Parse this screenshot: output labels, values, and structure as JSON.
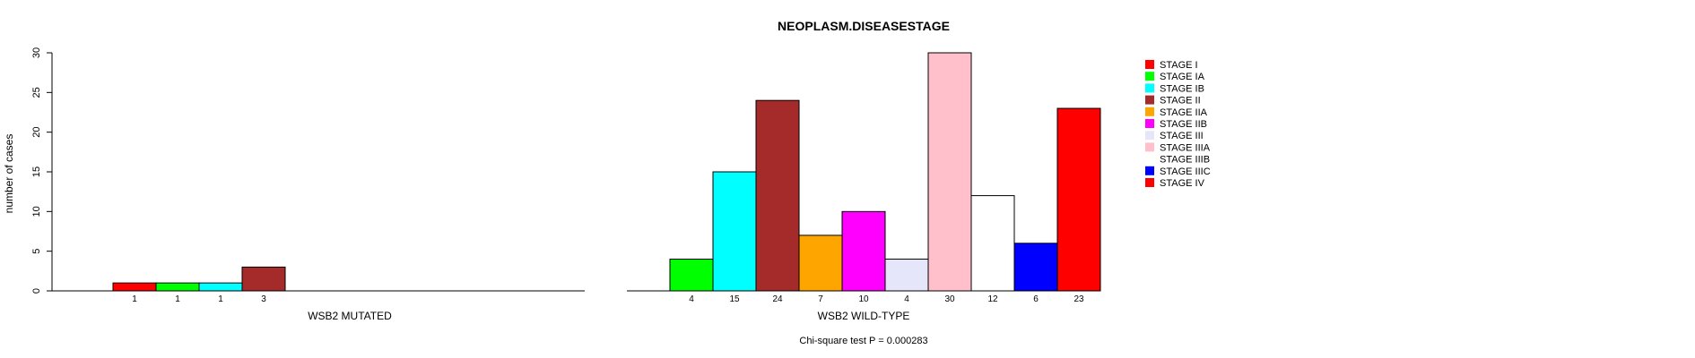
{
  "chart_data": {
    "type": "bar",
    "title": "NEOPLASM.DISEASESTAGE",
    "ylabel": "number of cases",
    "ylim": [
      0,
      30
    ],
    "yticks": [
      0,
      5,
      10,
      15,
      20,
      25,
      30
    ],
    "footer": "Chi-square test P = 0.000283",
    "categories": [
      "STAGE I",
      "STAGE IA",
      "STAGE IB",
      "STAGE II",
      "STAGE IIA",
      "STAGE IIB",
      "STAGE III",
      "STAGE IIIA",
      "STAGE IIIB",
      "STAGE IIIC",
      "STAGE IV"
    ],
    "colors": [
      "#ff0000",
      "#00ff00",
      "#00ffff",
      "#a52a2a",
      "#ffa500",
      "#ff00ff",
      "#e6e6fa",
      "#ffc0cb",
      "#ffffff",
      "#0000ff",
      "#ff0000"
    ],
    "legend_position": "top-right",
    "panels": [
      {
        "xlabel": "WSB2 MUTATED",
        "bars": [
          {
            "category": "STAGE I",
            "value": 1,
            "label": "1"
          },
          {
            "category": "STAGE IA",
            "value": 1,
            "label": "1"
          },
          {
            "category": "STAGE IB",
            "value": 1,
            "label": "1"
          },
          {
            "category": "STAGE II",
            "value": 3,
            "label": "3"
          }
        ]
      },
      {
        "xlabel": "WSB2 WILD-TYPE",
        "bars": [
          {
            "category": "STAGE I",
            "value": 0,
            "label": ""
          },
          {
            "category": "STAGE IA",
            "value": 4,
            "label": "4"
          },
          {
            "category": "STAGE IB",
            "value": 15,
            "label": "15"
          },
          {
            "category": "STAGE II",
            "value": 24,
            "label": "24"
          },
          {
            "category": "STAGE IIA",
            "value": 7,
            "label": "7"
          },
          {
            "category": "STAGE IIB",
            "value": 10,
            "label": "10"
          },
          {
            "category": "STAGE III",
            "value": 4,
            "label": "4"
          },
          {
            "category": "STAGE IIIA",
            "value": 30,
            "label": "30"
          },
          {
            "category": "STAGE IIIB",
            "value": 12,
            "label": "12"
          },
          {
            "category": "STAGE IIIC",
            "value": 6,
            "label": "6"
          },
          {
            "category": "STAGE IV",
            "value": 23,
            "label": "23"
          }
        ]
      }
    ]
  }
}
